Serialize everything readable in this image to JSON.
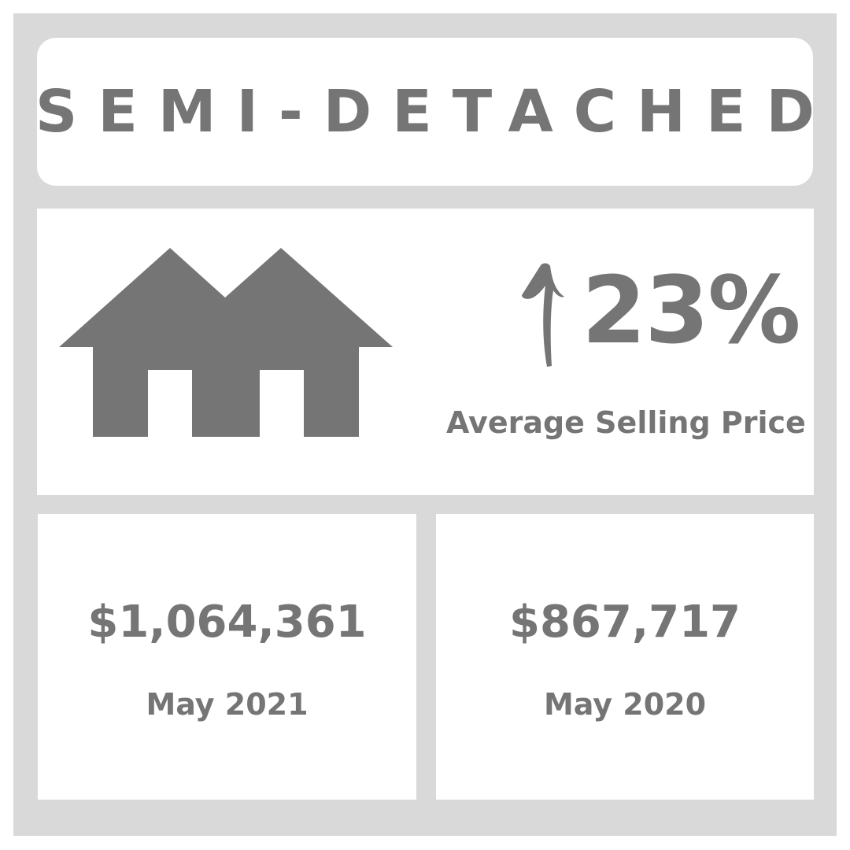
{
  "title": "SEMI-DETACHED",
  "change": {
    "direction": "up",
    "value": "23%",
    "label": "Average Selling Price",
    "icon": "up-arrow-icon"
  },
  "house_icon": "semi-detached-house-icon",
  "cards": [
    {
      "price": "$1,064,361",
      "date": "May 2021"
    },
    {
      "price": "$867,717",
      "date": "May 2020"
    }
  ],
  "colors": {
    "frame": "#d9d9d9",
    "panel": "#ffffff",
    "text": "#757575",
    "icon": "#757575"
  }
}
